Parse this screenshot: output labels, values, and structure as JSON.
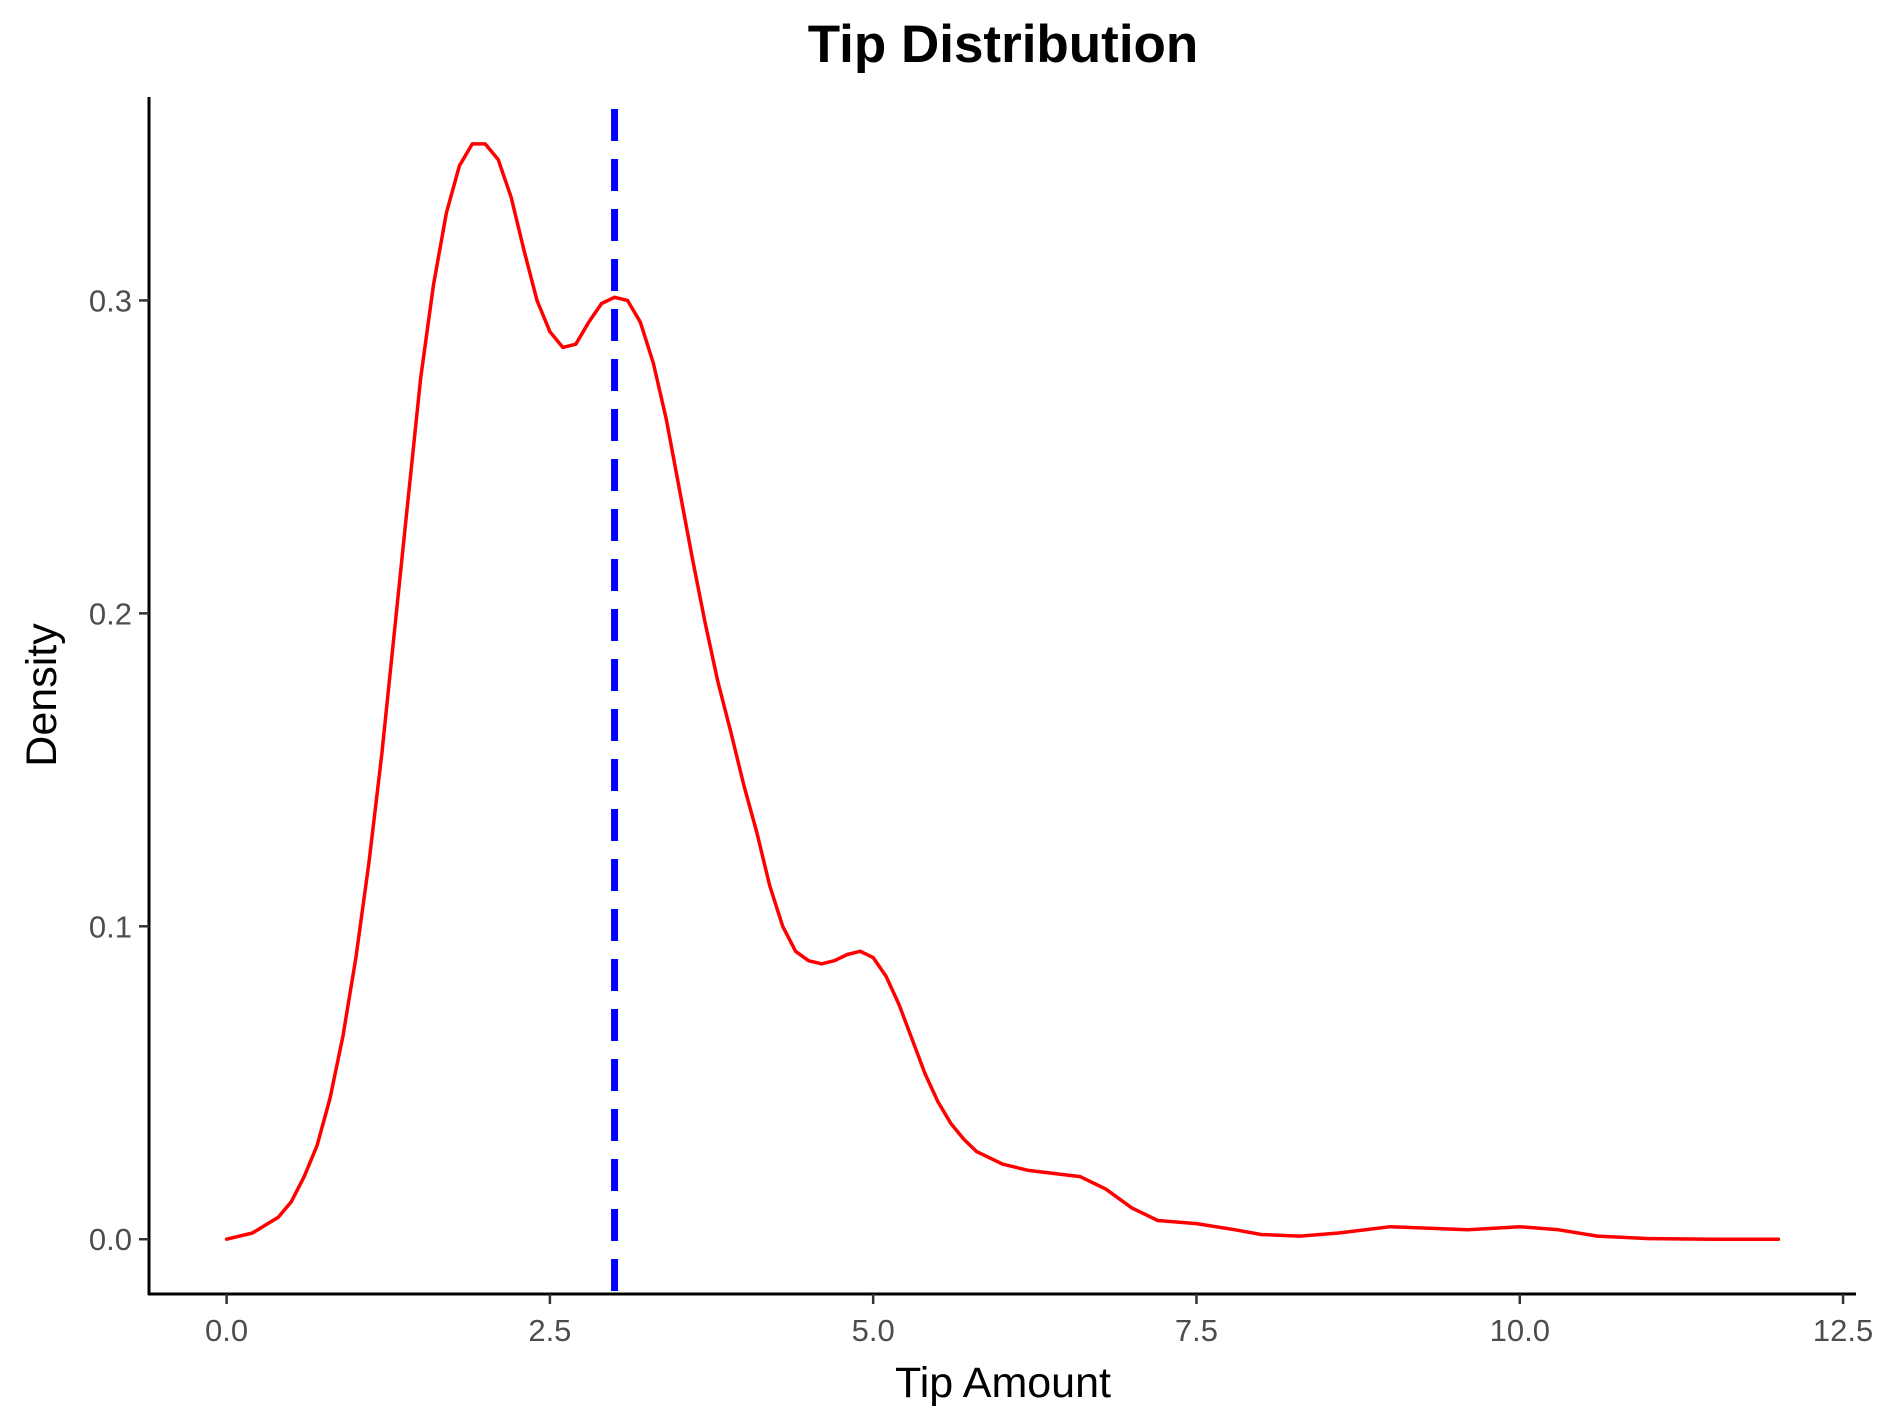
{
  "chart_data": {
    "type": "line",
    "title": "Tip Distribution",
    "xlabel": "Tip Amount",
    "ylabel": "Density",
    "xlim": [
      -0.6,
      12.6
    ],
    "ylim": [
      -0.0175,
      0.365
    ],
    "x_ticks": [
      0.0,
      2.5,
      5.0,
      7.5,
      10.0,
      12.5
    ],
    "x_tick_labels": [
      "0.0",
      "2.5",
      "5.0",
      "7.5",
      "10.0",
      "12.5"
    ],
    "y_ticks": [
      0.0,
      0.1,
      0.2,
      0.3
    ],
    "y_tick_labels": [
      "0.0",
      "0.1",
      "0.2",
      "0.3"
    ],
    "grid": false,
    "series": [
      {
        "color": "#ff0000",
        "points": [
          [
            0.0,
            0.0
          ],
          [
            0.2,
            0.002
          ],
          [
            0.4,
            0.007
          ],
          [
            0.5,
            0.012
          ],
          [
            0.6,
            0.02
          ],
          [
            0.7,
            0.03
          ],
          [
            0.8,
            0.045
          ],
          [
            0.9,
            0.065
          ],
          [
            1.0,
            0.09
          ],
          [
            1.1,
            0.12
          ],
          [
            1.2,
            0.155
          ],
          [
            1.3,
            0.195
          ],
          [
            1.4,
            0.235
          ],
          [
            1.5,
            0.275
          ],
          [
            1.6,
            0.305
          ],
          [
            1.7,
            0.328
          ],
          [
            1.8,
            0.343
          ],
          [
            1.9,
            0.35
          ],
          [
            2.0,
            0.35
          ],
          [
            2.1,
            0.345
          ],
          [
            2.2,
            0.333
          ],
          [
            2.3,
            0.316
          ],
          [
            2.4,
            0.3
          ],
          [
            2.5,
            0.29
          ],
          [
            2.6,
            0.285
          ],
          [
            2.7,
            0.286
          ],
          [
            2.8,
            0.293
          ],
          [
            2.9,
            0.299
          ],
          [
            3.0,
            0.301
          ],
          [
            3.1,
            0.3
          ],
          [
            3.2,
            0.293
          ],
          [
            3.3,
            0.28
          ],
          [
            3.4,
            0.262
          ],
          [
            3.5,
            0.24
          ],
          [
            3.6,
            0.218
          ],
          [
            3.7,
            0.197
          ],
          [
            3.8,
            0.178
          ],
          [
            3.9,
            0.162
          ],
          [
            4.0,
            0.145
          ],
          [
            4.1,
            0.13
          ],
          [
            4.2,
            0.113
          ],
          [
            4.3,
            0.1
          ],
          [
            4.4,
            0.092
          ],
          [
            4.5,
            0.089
          ],
          [
            4.6,
            0.088
          ],
          [
            4.7,
            0.089
          ],
          [
            4.8,
            0.091
          ],
          [
            4.9,
            0.092
          ],
          [
            5.0,
            0.09
          ],
          [
            5.1,
            0.084
          ],
          [
            5.2,
            0.075
          ],
          [
            5.3,
            0.064
          ],
          [
            5.4,
            0.053
          ],
          [
            5.5,
            0.044
          ],
          [
            5.6,
            0.037
          ],
          [
            5.7,
            0.032
          ],
          [
            5.8,
            0.028
          ],
          [
            6.0,
            0.024
          ],
          [
            6.2,
            0.022
          ],
          [
            6.4,
            0.021
          ],
          [
            6.6,
            0.02
          ],
          [
            6.8,
            0.016
          ],
          [
            7.0,
            0.01
          ],
          [
            7.2,
            0.006
          ],
          [
            7.5,
            0.005
          ],
          [
            7.8,
            0.003
          ],
          [
            8.0,
            0.0015
          ],
          [
            8.3,
            0.001
          ],
          [
            8.6,
            0.002
          ],
          [
            9.0,
            0.004
          ],
          [
            9.3,
            0.0035
          ],
          [
            9.6,
            0.003
          ],
          [
            10.0,
            0.004
          ],
          [
            10.3,
            0.003
          ],
          [
            10.6,
            0.001
          ],
          [
            11.0,
            0.0002
          ],
          [
            11.5,
            0.0
          ],
          [
            12.0,
            0.0
          ]
        ]
      }
    ],
    "reference_line": {
      "x": 3.0,
      "color": "#0000ff",
      "style": "dashed"
    }
  }
}
